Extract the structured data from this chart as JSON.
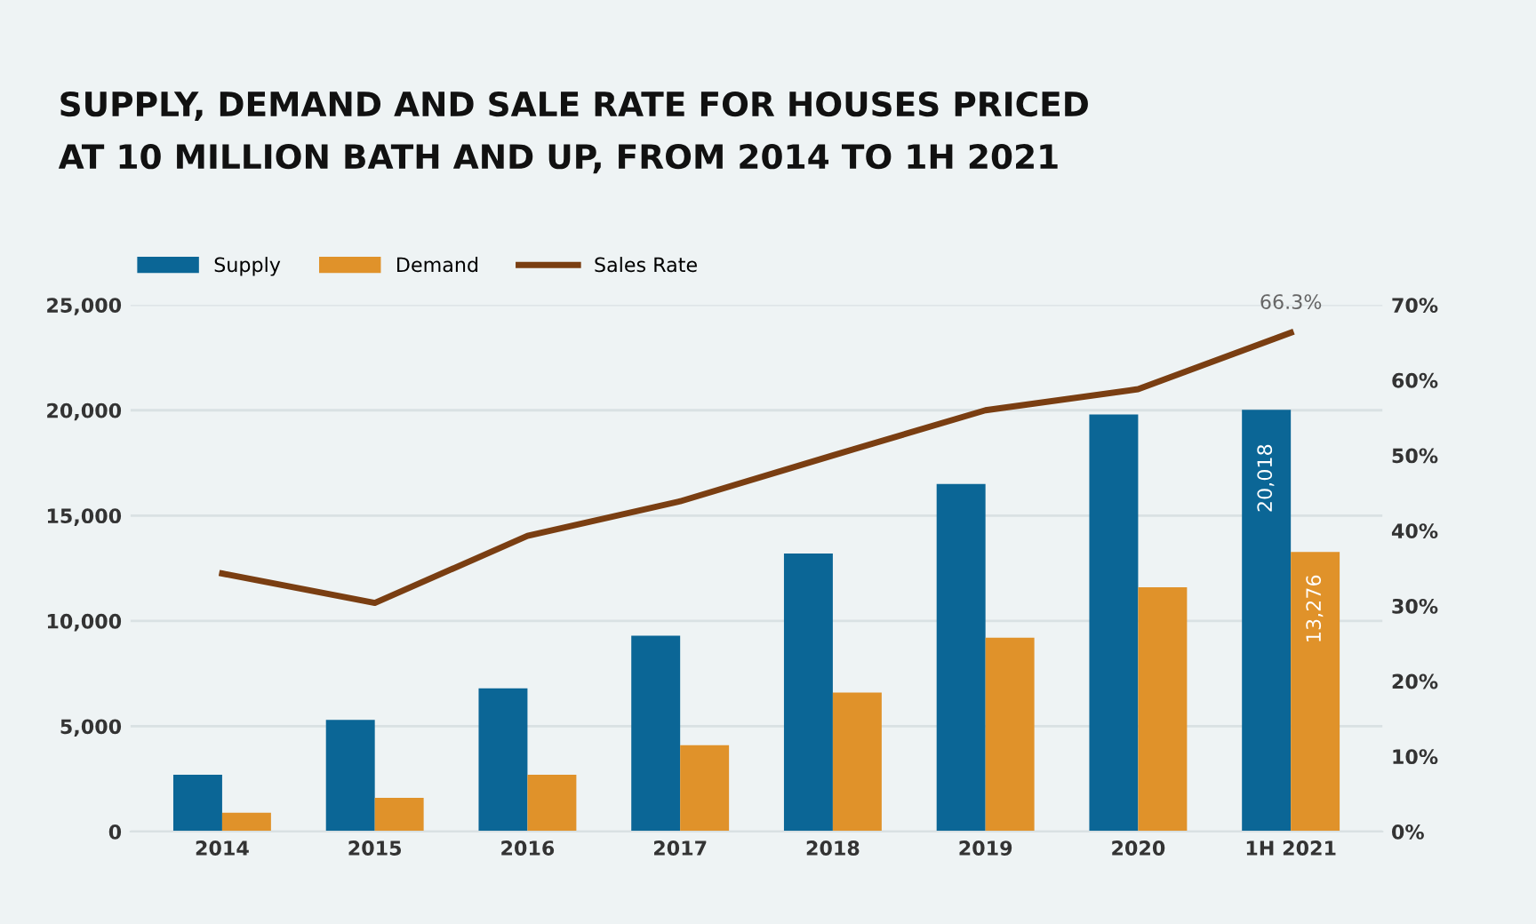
{
  "chart_data": {
    "type": "bar",
    "title": "SUPPLY, DEMAND AND SALE RATE FOR HOUSES PRICED\nAT 10 MILLION BATH AND UP, FROM 2014 TO 1H 2021",
    "categories": [
      "2014",
      "2015",
      "2016",
      "2017",
      "2018",
      "2019",
      "2020",
      "1H 2021"
    ],
    "series": [
      {
        "name": "Supply",
        "color": "#0b6696",
        "values": [
          2700,
          5300,
          6800,
          9300,
          13200,
          16500,
          19800,
          20018
        ],
        "value_labels": [
          null,
          null,
          null,
          null,
          null,
          null,
          null,
          "20,018"
        ]
      },
      {
        "name": "Demand",
        "color": "#e0922a",
        "values": [
          900,
          1600,
          2700,
          4100,
          6600,
          9200,
          11600,
          13276
        ],
        "value_labels": [
          null,
          null,
          null,
          null,
          null,
          null,
          null,
          "13,276"
        ]
      },
      {
        "name": "Sales Rate",
        "type": "line",
        "axis": "y2",
        "color": "#7a3e12",
        "values": [
          34.3,
          30.4,
          39.3,
          43.9,
          50,
          56,
          58.8,
          66.3
        ],
        "value_labels": [
          null,
          null,
          null,
          null,
          null,
          null,
          null,
          "66.3%"
        ]
      }
    ],
    "ylim": [
      0,
      25000
    ],
    "yticks": [
      {
        "value": 0,
        "label": "0"
      },
      {
        "value": 5000,
        "label": "5,000"
      },
      {
        "value": 10000,
        "label": "10,000"
      },
      {
        "value": 15000,
        "label": "15,000"
      },
      {
        "value": 20000,
        "label": "20,000"
      },
      {
        "value": 25000,
        "label": "25,000"
      }
    ],
    "y2lim": [
      0,
      70
    ],
    "y2ticks": [
      {
        "value": 0,
        "label": "0%"
      },
      {
        "value": 10,
        "label": "10%"
      },
      {
        "value": 20,
        "label": "20%"
      },
      {
        "value": 30,
        "label": "30%"
      },
      {
        "value": 40,
        "label": "40%"
      },
      {
        "value": 50,
        "label": "50%"
      },
      {
        "value": 60,
        "label": "60%"
      },
      {
        "value": 70,
        "label": "70%"
      }
    ],
    "grid": "y",
    "legend": "top left",
    "line_style": "solid",
    "marker": "none"
  }
}
